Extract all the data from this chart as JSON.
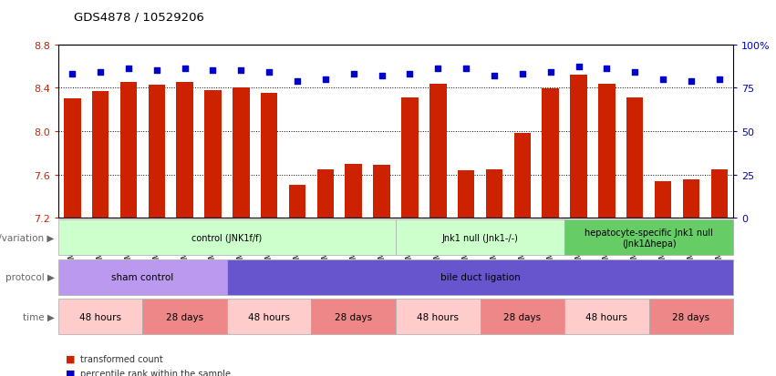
{
  "title": "GDS4878 / 10529206",
  "samples": [
    "GSM984189",
    "GSM984190",
    "GSM984191",
    "GSM984177",
    "GSM984178",
    "GSM984179",
    "GSM984180",
    "GSM984181",
    "GSM984182",
    "GSM984168",
    "GSM984169",
    "GSM984170",
    "GSM984183",
    "GSM984184",
    "GSM984185",
    "GSM984171",
    "GSM984172",
    "GSM984173",
    "GSM984186",
    "GSM984187",
    "GSM984188",
    "GSM984174",
    "GSM984175",
    "GSM984176"
  ],
  "bar_values": [
    8.3,
    8.37,
    8.45,
    8.43,
    8.45,
    8.38,
    8.4,
    8.35,
    7.5,
    7.65,
    7.7,
    7.69,
    8.31,
    8.44,
    7.64,
    7.65,
    7.98,
    8.39,
    8.52,
    8.44,
    8.31,
    7.54,
    7.55,
    7.65
  ],
  "percentile_values": [
    83,
    84,
    86,
    85,
    86,
    85,
    85,
    84,
    79,
    80,
    83,
    82,
    83,
    86,
    86,
    82,
    83,
    84,
    87,
    86,
    84,
    80,
    79,
    80
  ],
  "ymin": 7.2,
  "ymax": 8.8,
  "yticks": [
    7.2,
    7.6,
    8.0,
    8.4,
    8.8
  ],
  "bar_color": "#cc2200",
  "dot_color": "#0000cc",
  "bar_width": 0.6,
  "genotype_groups": [
    {
      "label": "control (JNK1f/f)",
      "start": 0,
      "end": 11,
      "color": "#ccffcc"
    },
    {
      "label": "Jnk1 null (Jnk1-/-)",
      "start": 12,
      "end": 17,
      "color": "#ccffcc"
    },
    {
      "label": "hepatocyte-specific Jnk1 null\n(Jnk1Δhepa)",
      "start": 18,
      "end": 23,
      "color": "#66cc66"
    }
  ],
  "protocol_groups": [
    {
      "label": "sham control",
      "start": 0,
      "end": 5,
      "color": "#bb99ee"
    },
    {
      "label": "bile duct ligation",
      "start": 6,
      "end": 23,
      "color": "#6655cc"
    }
  ],
  "time_groups": [
    {
      "label": "48 hours",
      "start": 0,
      "end": 2,
      "color": "#ffcccc"
    },
    {
      "label": "28 days",
      "start": 3,
      "end": 5,
      "color": "#ee8888"
    },
    {
      "label": "48 hours",
      "start": 6,
      "end": 8,
      "color": "#ffcccc"
    },
    {
      "label": "28 days",
      "start": 9,
      "end": 11,
      "color": "#ee8888"
    },
    {
      "label": "48 hours",
      "start": 12,
      "end": 14,
      "color": "#ffcccc"
    },
    {
      "label": "28 days",
      "start": 15,
      "end": 17,
      "color": "#ee8888"
    },
    {
      "label": "48 hours",
      "start": 18,
      "end": 20,
      "color": "#ffcccc"
    },
    {
      "label": "28 days",
      "start": 21,
      "end": 23,
      "color": "#ee8888"
    }
  ],
  "legend_items": [
    {
      "label": "transformed count",
      "color": "#cc2200"
    },
    {
      "label": "percentile rank within the sample",
      "color": "#0000cc"
    }
  ],
  "row_labels": [
    "genotype/variation",
    "protocol",
    "time"
  ],
  "grid_lines": [
    7.6,
    8.0,
    8.4
  ]
}
